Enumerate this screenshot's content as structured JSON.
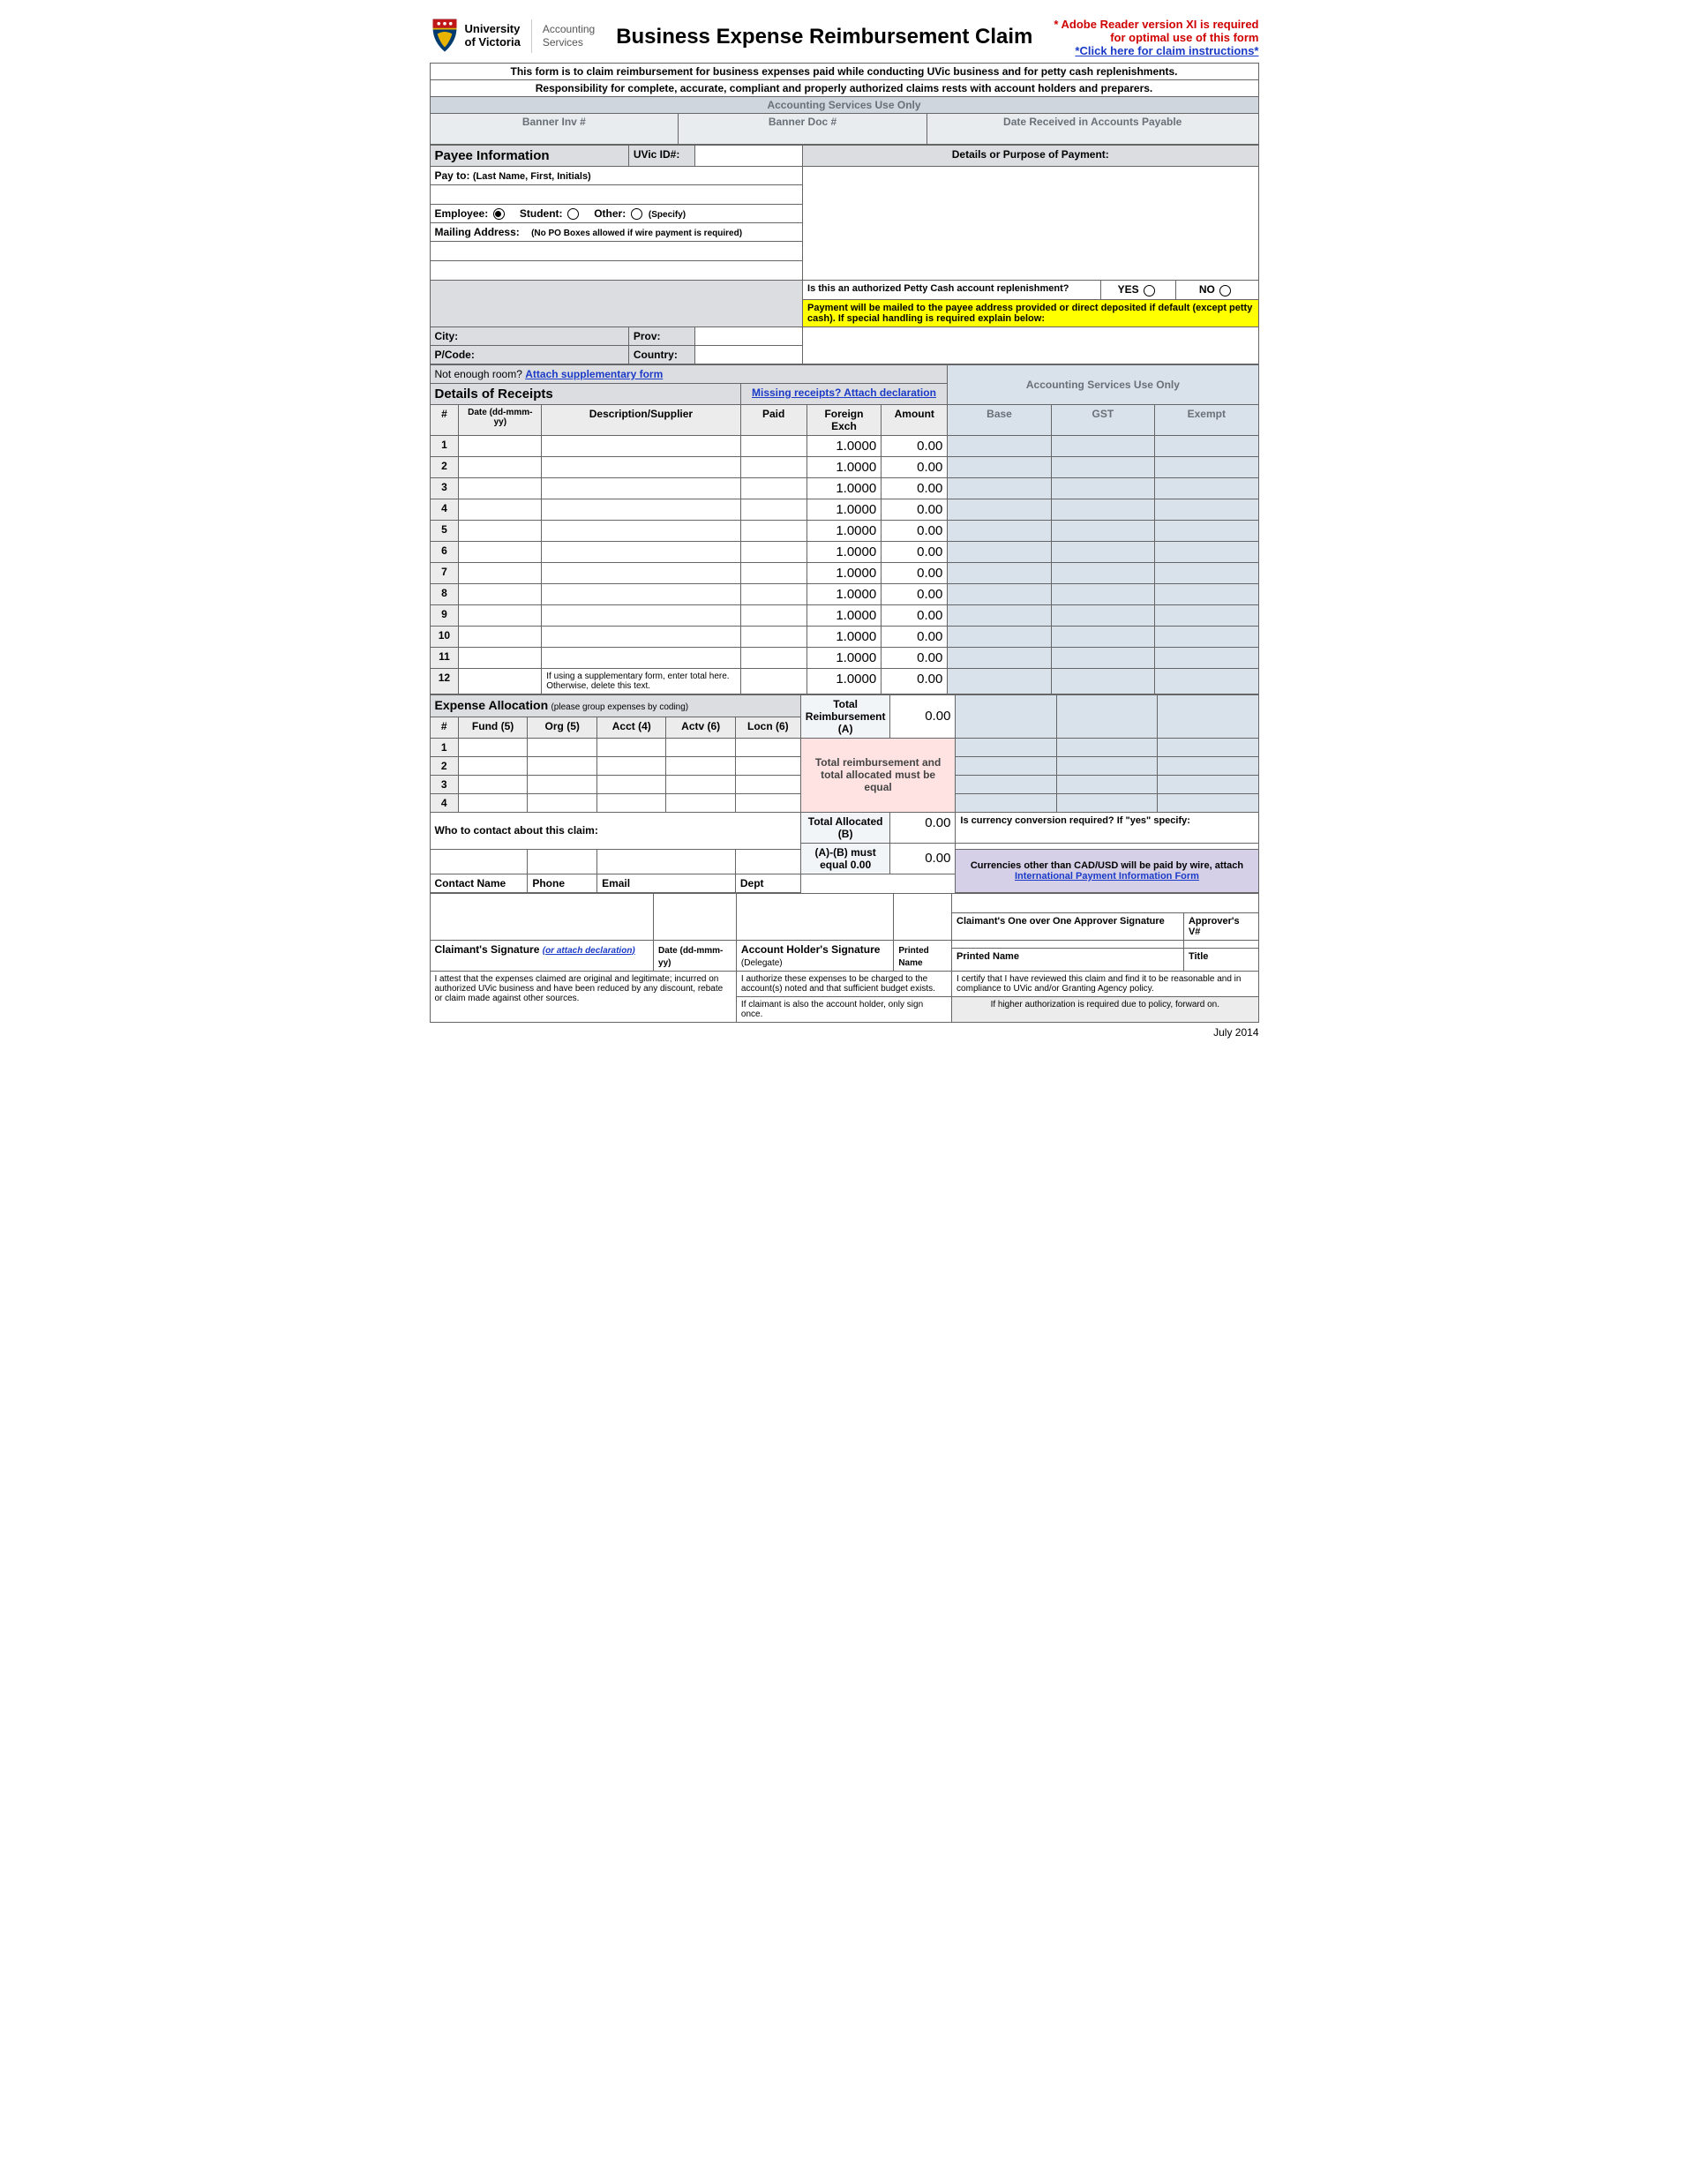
{
  "header": {
    "org1": "University",
    "org2": "of Victoria",
    "dept1": "Accounting",
    "dept2": "Services",
    "title": "Business Expense Reimbursement Claim",
    "warn1": "* Adobe Reader version XI is required",
    "warn2": "for optimal use of this form",
    "link": "*Click here for claim instructions*"
  },
  "intro": {
    "line1": "This form is to claim reimbursement for business expenses paid while conducting UVic business and for petty cash replenishments.",
    "line2": "Responsibility for complete, accurate, compliant and properly authorized claims rests with account holders and preparers.",
    "line3": "Accounting Services Use Only",
    "banner_inv": "Banner Inv #",
    "banner_doc": "Banner Doc #",
    "date_recv": "Date Received in Accounts Payable"
  },
  "payee": {
    "section": "Payee Information",
    "uvic_id": "UVic ID#:",
    "details_head": "Details or Purpose of Payment:",
    "payto": "Pay to:",
    "payto_hint": "(Last Name, First, Initials)",
    "employee": "Employee:",
    "student": "Student:",
    "other": "Other:",
    "specify": "(Specify)",
    "mailing": "Mailing Address:",
    "mailing_hint": "(No PO Boxes allowed if wire payment is required)",
    "city": "City:",
    "prov": "Prov:",
    "pcode": "P/Code:",
    "country": "Country:",
    "petty_q": "Is this an authorized Petty Cash account replenishment?",
    "yes": "YES",
    "no": "NO",
    "yellow_note": "Payment will be mailed to the payee address provided or direct deposited if default (except petty cash). If special handling is required explain below:"
  },
  "receipts": {
    "not_enough": "Not enough room? ",
    "attach_link": "Attach supplementary form",
    "section": "Details of Receipts",
    "missing_link": "Missing receipts? Attach declaration",
    "acct_only": "Accounting Services Use Only",
    "cols": [
      "#",
      "Date (dd-mmm-yy)",
      "Description/Supplier",
      "Paid",
      "Foreign Exch",
      "Amount",
      "Base",
      "GST",
      "Exempt"
    ],
    "rows": [
      {
        "n": "1",
        "fx": "1.0000",
        "amt": "0.00"
      },
      {
        "n": "2",
        "fx": "1.0000",
        "amt": "0.00"
      },
      {
        "n": "3",
        "fx": "1.0000",
        "amt": "0.00"
      },
      {
        "n": "4",
        "fx": "1.0000",
        "amt": "0.00"
      },
      {
        "n": "5",
        "fx": "1.0000",
        "amt": "0.00"
      },
      {
        "n": "6",
        "fx": "1.0000",
        "amt": "0.00"
      },
      {
        "n": "7",
        "fx": "1.0000",
        "amt": "0.00"
      },
      {
        "n": "8",
        "fx": "1.0000",
        "amt": "0.00"
      },
      {
        "n": "9",
        "fx": "1.0000",
        "amt": "0.00"
      },
      {
        "n": "10",
        "fx": "1.0000",
        "amt": "0.00"
      },
      {
        "n": "11",
        "fx": "1.0000",
        "amt": "0.00"
      },
      {
        "n": "12",
        "fx": "1.0000",
        "amt": "0.00",
        "desc": "If using a supplementary form, enter total here. Otherwise, delete this text."
      }
    ]
  },
  "alloc": {
    "section": "Expense Allocation",
    "hint": "(please group expenses by coding)",
    "total_a": "Total Reimbursement (A)",
    "total_a_val": "0.00",
    "cols": [
      "#",
      "Fund (5)",
      "Org (5)",
      "Acct (4)",
      "Actv (6)",
      "Locn (6)"
    ],
    "rows": [
      "1",
      "2",
      "3",
      "4"
    ],
    "pink_msg": "Total reimbursement and total allocated must be equal",
    "total_b": "Total Allocated (B)",
    "total_b_val": "0.00",
    "ab_msg": "(A)-(B) must equal 0.00",
    "ab_val": "0.00",
    "who_contact": "Who to contact about this claim:",
    "contact_name": "Contact Name",
    "phone": "Phone",
    "email": "Email",
    "dept": "Dept",
    "currency_q": "Is currency conversion required? If \"yes\" specify:",
    "other_curr": "Currencies other than CAD/USD will be paid by wire, attach",
    "intl_link": "International Payment  Information Form"
  },
  "sign": {
    "approver": "Claimant's One over One Approver Signature",
    "approver_v": "Approver's V#",
    "printed_name2": "Printed Name",
    "title2": "Title",
    "claimant_sig": "Claimant's Signature",
    "claimant_hint": "(or attach declaration)",
    "date_hdr": "Date (dd-mmm-yy)",
    "acct_holder": "Account Holder's Signature",
    "delegate": "(Delegate)",
    "printed_name": "Printed Name",
    "attest1": "I attest that the expenses claimed are original and legitimate; incurred on authorized UVic business and have been reduced by any discount, rebate or claim made against other sources.",
    "attest2a": "I authorize these expenses to be charged to the account(s) noted and that sufficient budget exists.",
    "attest2b": "If claimant is also the account holder, only sign once.",
    "attest3a": "I certify that I have reviewed this claim and find it to be reasonable and in compliance to UVic and/or Granting Agency policy.",
    "attest3b": "If higher authorization is required due to policy, forward on."
  },
  "footer": {
    "date": "July 2014"
  }
}
